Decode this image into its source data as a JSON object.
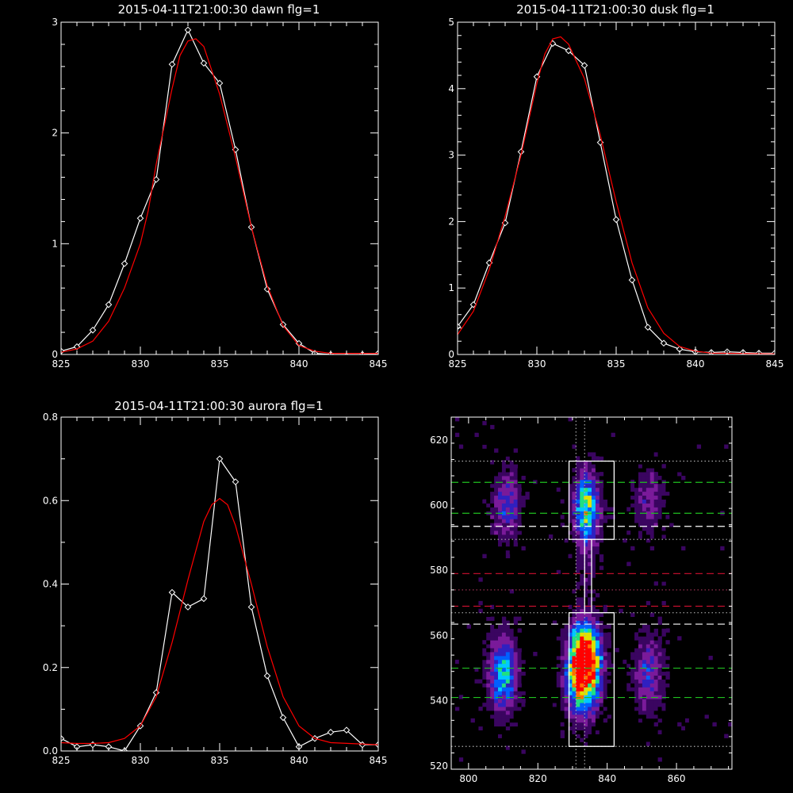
{
  "chart_data": [
    {
      "type": "line",
      "title": "2015-04-11T21:00:30 dawn flg=1",
      "xlim": [
        825,
        845
      ],
      "ylim": [
        0,
        3
      ],
      "xticks": [
        "825",
        "830",
        "835",
        "840",
        "845"
      ],
      "yticks": [
        "0",
        "1",
        "2",
        "3"
      ],
      "colors": {
        "data": "#ffffff",
        "fit": "#ff0000"
      },
      "series": [
        {
          "kind": "data",
          "x": [
            825,
            826,
            827,
            828,
            829,
            830,
            831,
            832,
            833,
            834,
            835,
            836,
            837,
            838,
            839,
            840,
            841,
            842,
            843,
            844,
            845
          ],
          "y": [
            0.03,
            0.07,
            0.22,
            0.45,
            0.82,
            1.23,
            1.58,
            2.62,
            2.93,
            2.63,
            2.45,
            1.85,
            1.15,
            0.59,
            0.27,
            0.1,
            0.01,
            0.0,
            -0.01,
            0.0,
            0.01
          ]
        },
        {
          "kind": "fit",
          "x": [
            825,
            826,
            827,
            828,
            829,
            830,
            830.5,
            831,
            832,
            832.5,
            833,
            833.5,
            834,
            835,
            836,
            837,
            838,
            839,
            840,
            841,
            842,
            843,
            845
          ],
          "y": [
            0.02,
            0.05,
            0.12,
            0.3,
            0.6,
            1.0,
            1.3,
            1.72,
            2.4,
            2.7,
            2.83,
            2.85,
            2.78,
            2.35,
            1.78,
            1.15,
            0.62,
            0.26,
            0.08,
            0.03,
            0.01,
            0.01,
            0.01
          ]
        }
      ]
    },
    {
      "type": "line",
      "title": "2015-04-11T21:00:30 dusk flg=1",
      "xlim": [
        825,
        845
      ],
      "ylim": [
        0,
        5
      ],
      "xticks": [
        "825",
        "830",
        "835",
        "840",
        "845"
      ],
      "yticks": [
        "0",
        "1",
        "2",
        "3",
        "4",
        "5"
      ],
      "colors": {
        "data": "#ffffff",
        "fit": "#ff0000"
      },
      "series": [
        {
          "kind": "data",
          "x": [
            825,
            826,
            827,
            828,
            829,
            830,
            831,
            832,
            833,
            834,
            835,
            836,
            837,
            838,
            839,
            840,
            841,
            842,
            843,
            844,
            845
          ],
          "y": [
            0.42,
            0.75,
            1.38,
            1.98,
            3.05,
            4.18,
            4.68,
            4.57,
            4.35,
            3.19,
            2.03,
            1.12,
            0.41,
            0.17,
            0.08,
            0.04,
            0.03,
            0.04,
            0.03,
            0.02,
            0.02
          ]
        },
        {
          "kind": "fit",
          "x": [
            825,
            826,
            827,
            828,
            829,
            830,
            830.5,
            831,
            831.5,
            832,
            833,
            834,
            835,
            836,
            837,
            838,
            839,
            840,
            841,
            845
          ],
          "y": [
            0.3,
            0.65,
            1.28,
            2.08,
            3.0,
            4.08,
            4.52,
            4.75,
            4.78,
            4.67,
            4.15,
            3.3,
            2.3,
            1.38,
            0.7,
            0.32,
            0.12,
            0.05,
            0.02,
            0.01
          ]
        }
      ]
    },
    {
      "type": "line",
      "title": "2015-04-11T21:00:30 aurora flg=1",
      "xlim": [
        825,
        845
      ],
      "ylim": [
        0,
        0.8
      ],
      "xticks": [
        "825",
        "830",
        "835",
        "840",
        "845"
      ],
      "yticks": [
        "0.0",
        "0.2",
        "0.4",
        "0.6",
        "0.8"
      ],
      "colors": {
        "data": "#ffffff",
        "fit": "#ff0000"
      },
      "series": [
        {
          "kind": "data",
          "x": [
            825,
            826,
            827,
            828,
            829,
            830,
            831,
            832,
            833,
            834,
            835,
            836,
            837,
            838,
            839,
            840,
            841,
            842,
            843,
            844,
            845
          ],
          "y": [
            0.03,
            0.01,
            0.015,
            0.01,
            0.0,
            0.06,
            0.14,
            0.38,
            0.345,
            0.365,
            0.7,
            0.645,
            0.345,
            0.18,
            0.08,
            0.01,
            0.03,
            0.045,
            0.05,
            0.015,
            0.015
          ]
        },
        {
          "kind": "fit",
          "x": [
            825,
            826,
            827,
            828,
            829,
            830,
            831,
            832,
            833,
            834,
            834.5,
            835,
            835.5,
            836,
            837,
            838,
            839,
            840,
            841,
            842,
            845
          ],
          "y": [
            0.02,
            0.018,
            0.018,
            0.02,
            0.03,
            0.06,
            0.13,
            0.26,
            0.41,
            0.55,
            0.59,
            0.605,
            0.59,
            0.54,
            0.4,
            0.25,
            0.13,
            0.06,
            0.03,
            0.02,
            0.015
          ]
        }
      ]
    },
    {
      "type": "heatmap",
      "title": "",
      "xlim": [
        795,
        876
      ],
      "ylim": [
        519,
        627
      ],
      "xticks": [
        "800",
        "820",
        "840",
        "860"
      ],
      "yticks": [
        "520",
        "540",
        "560",
        "580",
        "600",
        "620"
      ],
      "colormap": [
        "#000000",
        "#3a0560",
        "#7a1a9a",
        "#3020c0",
        "#0060ff",
        "#00c8ff",
        "#20e080",
        "#e0e000",
        "#ff7000",
        "#ff0000"
      ],
      "blobs": [
        {
          "x": 833,
          "y": 548,
          "sx": 3.2,
          "sy": 8,
          "amp": 1.0
        },
        {
          "x": 834,
          "y": 556,
          "sx": 3.0,
          "sy": 6,
          "amp": 0.55
        },
        {
          "x": 834,
          "y": 600,
          "sx": 2.5,
          "sy": 7,
          "amp": 0.62
        },
        {
          "x": 834,
          "y": 585,
          "sx": 2.5,
          "sy": 12,
          "amp": 0.12
        },
        {
          "x": 810,
          "y": 548,
          "sx": 2.8,
          "sy": 8,
          "amp": 0.55
        },
        {
          "x": 811,
          "y": 600,
          "sx": 2.8,
          "sy": 7,
          "amp": 0.35
        },
        {
          "x": 852,
          "y": 548,
          "sx": 3.0,
          "sy": 8,
          "amp": 0.32
        },
        {
          "x": 852,
          "y": 601,
          "sx": 3.0,
          "sy": 7,
          "amp": 0.22
        }
      ],
      "noise_level": 0.12,
      "hlines": [
        {
          "y": 613.5,
          "color": "#aaaaaa",
          "style": "dotted"
        },
        {
          "y": 607,
          "color": "#20c020",
          "style": "dashed"
        },
        {
          "y": 597.5,
          "color": "#20c020",
          "style": "dashed"
        },
        {
          "y": 593.5,
          "color": "#ffffff",
          "style": "dashed"
        },
        {
          "y": 589.5,
          "color": "#aaaaaa",
          "style": "dotted"
        },
        {
          "y": 579,
          "color": "#d01030",
          "style": "dashed"
        },
        {
          "y": 574,
          "color": "#9a3050",
          "style": "dotted"
        },
        {
          "y": 569,
          "color": "#d01030",
          "style": "dashed"
        },
        {
          "y": 567,
          "color": "#aaaaaa",
          "style": "dotted"
        },
        {
          "y": 563.5,
          "color": "#ffffff",
          "style": "dashed"
        },
        {
          "y": 550,
          "color": "#20c020",
          "style": "dashed"
        },
        {
          "y": 541,
          "color": "#20c020",
          "style": "dashed"
        },
        {
          "y": 526,
          "color": "#aaaaaa",
          "style": "dotted"
        }
      ],
      "vlines": [
        {
          "x": 831,
          "color": "#aaaaaa",
          "style": "dotted"
        },
        {
          "x": 833.5,
          "color": "#aaaaaa",
          "style": "dotted"
        }
      ],
      "boxes": [
        {
          "x0": 829,
          "x1": 842,
          "y0": 589.5,
          "y1": 613.5,
          "color": "#ffffff"
        },
        {
          "x0": 829,
          "x1": 842,
          "y0": 526,
          "y1": 567,
          "color": "#ffffff"
        },
        {
          "x0": 833.5,
          "x1": 835.5,
          "y0": 567,
          "y1": 589.5,
          "color": "#ffffff"
        }
      ]
    }
  ]
}
